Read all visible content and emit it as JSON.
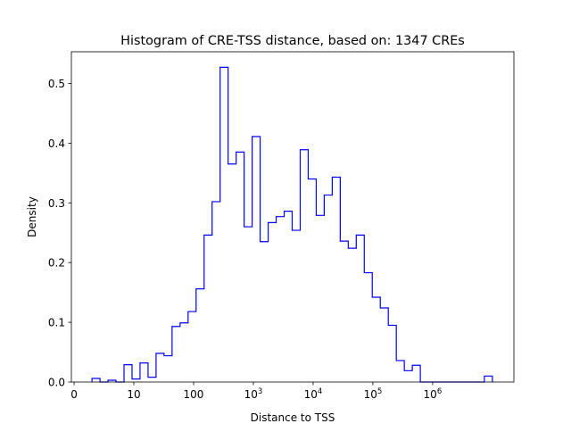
{
  "chart_data": {
    "type": "bar",
    "style": "step-histogram",
    "title": "Histogram of CRE-TSS distance, based on: 1347 CREs",
    "xlabel": "Distance to TSS",
    "ylabel": "Density",
    "x_scale": "log10",
    "xlim": [
      -0.045,
      7.36
    ],
    "ylim": [
      0,
      0.553
    ],
    "grid": false,
    "line_color": "#0000ff",
    "bin_start": 0.3,
    "bin_width": 0.134,
    "values": [
      0.006,
      0,
      0.003,
      0,
      0.029,
      0.005,
      0.032,
      0.008,
      0.048,
      0.044,
      0.093,
      0.099,
      0.118,
      0.156,
      0.246,
      0.302,
      0.527,
      0.365,
      0.385,
      0.26,
      0.411,
      0.235,
      0.267,
      0.277,
      0.286,
      0.254,
      0.389,
      0.34,
      0.279,
      0.313,
      0.343,
      0.236,
      0.224,
      0.246,
      0.183,
      0.142,
      0.124,
      0.095,
      0.036,
      0.019,
      0.028,
      0,
      0,
      0,
      0,
      0,
      0,
      0,
      0,
      0.01
    ],
    "xticks": [
      {
        "pos": 0,
        "base": "0",
        "exp": ""
      },
      {
        "pos": 1,
        "base": "10",
        "exp": ""
      },
      {
        "pos": 2,
        "base": "100",
        "exp": ""
      },
      {
        "pos": 3,
        "base": "10",
        "exp": "3"
      },
      {
        "pos": 4,
        "base": "10",
        "exp": "4"
      },
      {
        "pos": 5,
        "base": "10",
        "exp": "5"
      },
      {
        "pos": 6,
        "base": "10",
        "exp": "6"
      }
    ],
    "yticks": [
      {
        "pos": 0,
        "label": "0.0"
      },
      {
        "pos": 0.1,
        "label": "0.1"
      },
      {
        "pos": 0.2,
        "label": "0.2"
      },
      {
        "pos": 0.3,
        "label": "0.3"
      },
      {
        "pos": 0.4,
        "label": "0.4"
      },
      {
        "pos": 0.5,
        "label": "0.5"
      }
    ]
  }
}
